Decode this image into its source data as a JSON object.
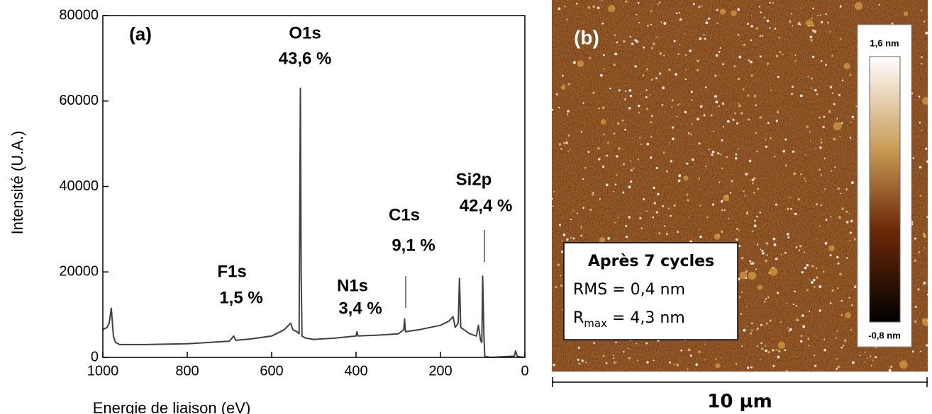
{
  "chart_data": [
    {
      "type": "line",
      "xlabel": "Energie de liaison (eV)",
      "ylabel": "Intensité (U.A.)",
      "color": "#404040",
      "xlim": [
        1000,
        0
      ],
      "xticks": [
        1000,
        800,
        600,
        400,
        200,
        0
      ],
      "ylim": [
        0,
        80000
      ],
      "yticks": [
        0,
        20000,
        40000,
        60000,
        80000
      ],
      "x": [
        1000,
        990,
        985,
        980,
        978,
        975,
        970,
        960,
        900,
        800,
        700,
        690,
        685,
        650,
        600,
        570,
        560,
        555,
        550,
        540,
        535,
        532,
        530,
        528,
        520,
        500,
        450,
        400,
        398,
        395,
        350,
        300,
        287,
        285,
        283,
        250,
        200,
        180,
        170,
        165,
        158,
        155,
        152,
        130,
        115,
        110,
        105,
        102,
        100,
        97,
        95,
        80,
        25,
        22,
        18,
        0
      ],
      "values": [
        6500,
        7000,
        8000,
        11500,
        9000,
        5000,
        3500,
        3000,
        3000,
        3200,
        3800,
        5000,
        4000,
        4300,
        5000,
        6500,
        7500,
        8000,
        6500,
        6000,
        5500,
        63000,
        20000,
        5000,
        4500,
        4200,
        4500,
        5000,
        6000,
        5000,
        5200,
        5500,
        6500,
        9000,
        6000,
        6500,
        7500,
        8500,
        9500,
        7000,
        8000,
        18500,
        7000,
        5500,
        5000,
        7500,
        4000,
        3500,
        19000,
        5000,
        200,
        0,
        300,
        1500,
        200,
        0
      ],
      "annotations": [
        "(a)",
        "O1s",
        "43,6 %",
        "F1s",
        "1,5 %",
        "N1s",
        "3,4 %",
        "C1s",
        "9,1 %",
        "Si2p",
        "42,4 %"
      ]
    },
    {
      "type": "image",
      "panel_label": "(b)",
      "box_lines": [
        "Après 7 cycles",
        "RMS = 0,4 nm"
      ],
      "rmax": [
        "R",
        "max",
        " = 4,3 nm"
      ],
      "colorbar_lim": [
        -0.8,
        1.6
      ],
      "colorbar_ticks": [
        {
          "value": 1.6,
          "label": "1,6 nm"
        },
        {
          "value": -0.8,
          "label": "-0,8 nm"
        }
      ],
      "scale_label": "10 µm"
    }
  ]
}
